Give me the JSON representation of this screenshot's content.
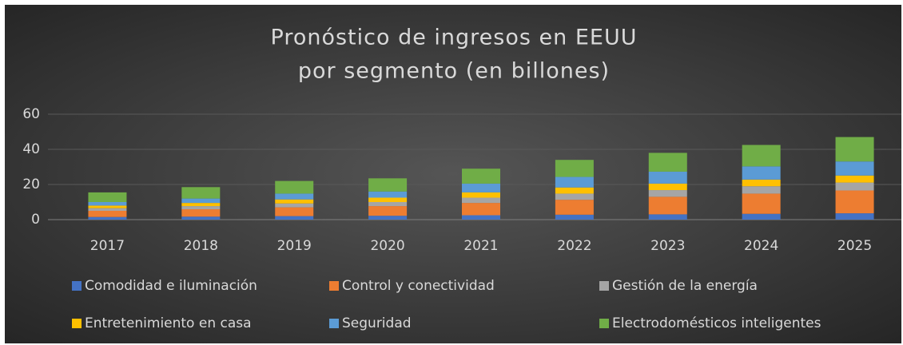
{
  "chart_data": {
    "type": "stacked_bar",
    "title": [
      "Pronóstico de ingresos en EEUU",
      "por segmento (en billones)"
    ],
    "categories": [
      "2017",
      "2018",
      "2019",
      "2020",
      "2021",
      "2022",
      "2023",
      "2024",
      "2025"
    ],
    "series": [
      {
        "name": "Comodidad e iluminación",
        "color": "#4472c4",
        "values": [
          1.5,
          1.7,
          2,
          2.2,
          2.5,
          2.8,
          3,
          3.3,
          3.6
        ]
      },
      {
        "name": "Control y conectividad",
        "color": "#ed7d31",
        "values": [
          3.5,
          4.2,
          5,
          5.5,
          7,
          8.5,
          10,
          11.5,
          13
        ]
      },
      {
        "name": "Gestión de la energía",
        "color": "#a5a5a5",
        "values": [
          1.5,
          1.8,
          2.2,
          2.3,
          3,
          3.5,
          3.8,
          4.2,
          4.5
        ]
      },
      {
        "name": "Entretenimiento en casa",
        "color": "#ffc000",
        "values": [
          1.5,
          1.8,
          2.3,
          2.5,
          3,
          3.5,
          3.7,
          3.8,
          4
        ]
      },
      {
        "name": "Seguridad",
        "color": "#5b9bd5",
        "values": [
          2,
          2.5,
          3.3,
          3.5,
          5,
          6,
          6.8,
          7.5,
          8
        ]
      },
      {
        "name": "Electrodomésticos inteligentes",
        "color": "#70ad47",
        "values": [
          5.5,
          6.5,
          7.2,
          7.5,
          8.5,
          9.7,
          10.7,
          12.2,
          13.9
        ]
      }
    ],
    "ylim": [
      0,
      60
    ],
    "yticks": [
      0,
      20,
      40,
      60
    ],
    "grid": true,
    "legend": "bottom"
  }
}
